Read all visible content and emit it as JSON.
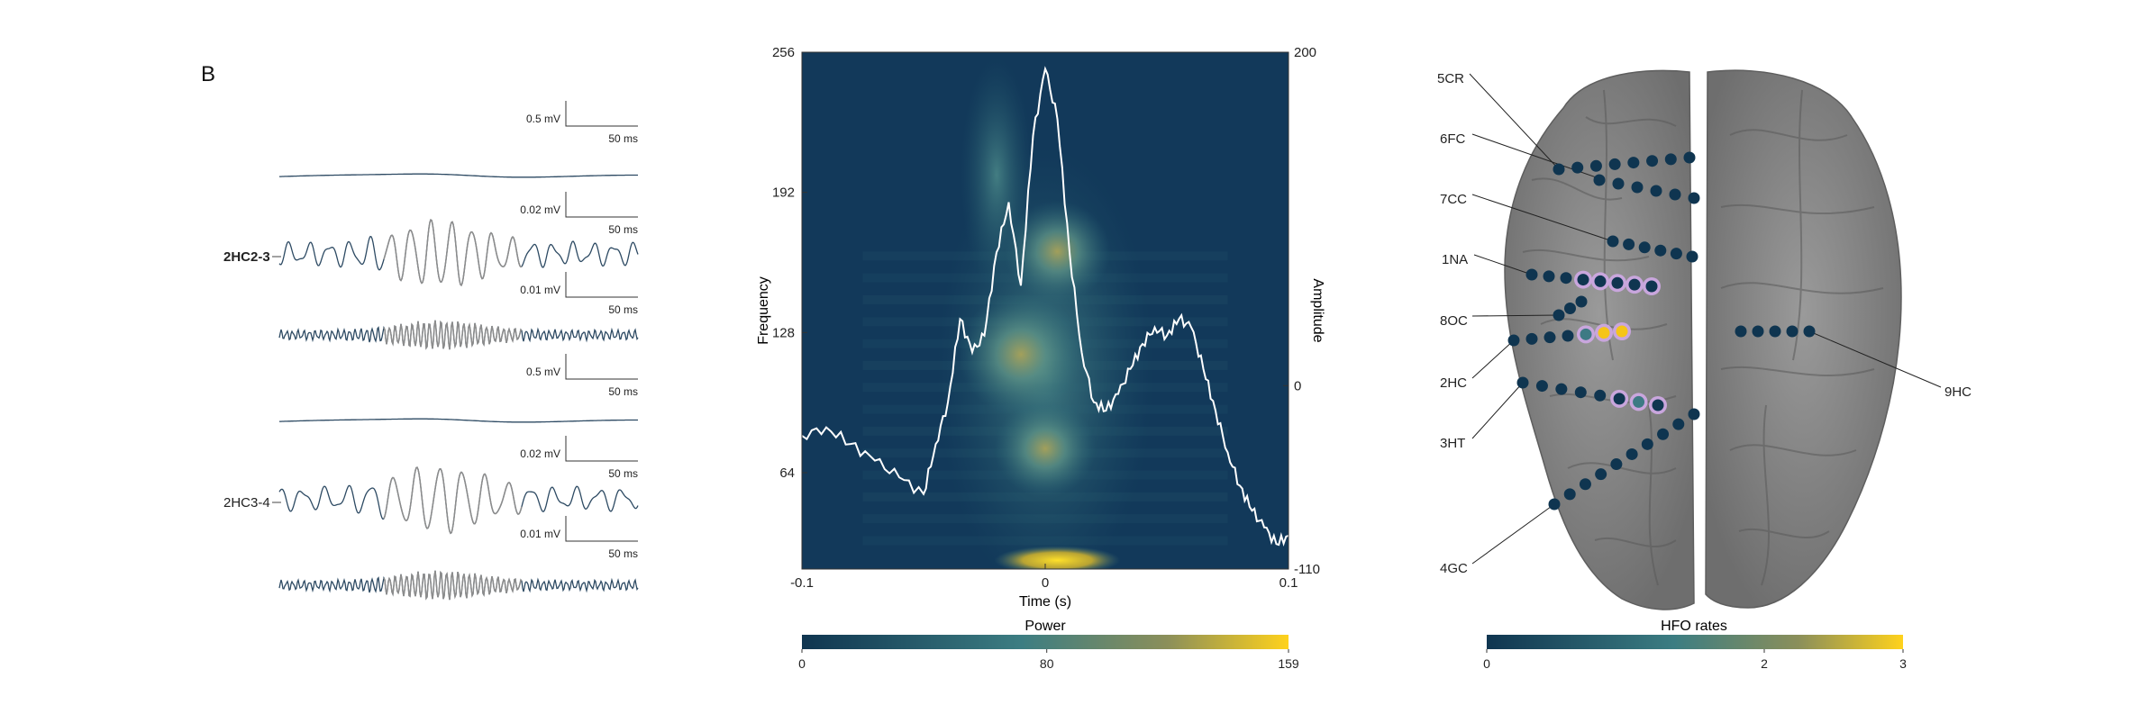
{
  "panel_label": "B",
  "traces": {
    "channels": [
      {
        "label": "2HC2-3",
        "bold": true
      },
      {
        "label": "2HC3-4",
        "bold": false
      }
    ],
    "scalebars": [
      {
        "amplitude": "0.5 mV",
        "time": "50 ms"
      },
      {
        "amplitude": "0.02 mV",
        "time": "50 ms"
      },
      {
        "amplitude": "0.01 mV",
        "time": "50 ms"
      },
      {
        "amplitude": "0.5 mV",
        "time": "50 ms"
      },
      {
        "amplitude": "0.02 mV",
        "time": "50 ms"
      },
      {
        "amplitude": "0.01 mV",
        "time": "50 ms"
      }
    ],
    "colors": {
      "trace": "#2d4a63",
      "highlight": "#8c8c8c"
    }
  },
  "chart_data": {
    "type": "heatmap",
    "xlabel": "Time (s)",
    "ylabel": "Frequency",
    "y2label": "Amplitude",
    "xlim": [
      -0.1,
      0.1
    ],
    "ylim": [
      20,
      256
    ],
    "y2lim": [
      -110,
      200
    ],
    "xticks": [
      "-0.1",
      "0",
      "0.1"
    ],
    "yticks": [
      "64",
      "128",
      "192",
      "256"
    ],
    "y2ticks": [
      "-110",
      "0",
      "200"
    ],
    "colorbar": {
      "label": "Power",
      "min": 0,
      "mid": 80,
      "max": 159,
      "ticks": [
        "0",
        "80",
        "159"
      ]
    },
    "hotspots": [
      {
        "t": -0.01,
        "f": 118,
        "power": 95
      },
      {
        "t": 0.005,
        "f": 165,
        "power": 55
      },
      {
        "t": 0.0,
        "f": 75,
        "power": 45
      },
      {
        "t": 0.005,
        "f": 24,
        "power": 159
      }
    ],
    "amplitude_trace": {
      "t": [
        -0.1,
        -0.09,
        -0.08,
        -0.07,
        -0.06,
        -0.05,
        -0.045,
        -0.04,
        -0.035,
        -0.03,
        -0.025,
        -0.02,
        -0.015,
        -0.01,
        -0.005,
        0.0,
        0.005,
        0.01,
        0.015,
        0.02,
        0.025,
        0.03,
        0.035,
        0.04,
        0.045,
        0.05,
        0.055,
        0.06,
        0.065,
        0.07,
        0.075,
        0.08,
        0.085,
        0.09,
        0.095,
        0.1
      ],
      "a": [
        -30,
        -25,
        -35,
        -45,
        -55,
        -65,
        -35,
        -10,
        40,
        20,
        30,
        80,
        110,
        60,
        150,
        190,
        160,
        80,
        20,
        -10,
        -15,
        -5,
        10,
        25,
        35,
        30,
        40,
        35,
        10,
        -15,
        -40,
        -60,
        -75,
        -85,
        -95,
        -90
      ]
    }
  },
  "brain": {
    "electrode_labels": [
      "5CR",
      "6FC",
      "7CC",
      "1NA",
      "8OC",
      "2HC",
      "3HT",
      "4GC",
      "9HC"
    ],
    "colorbar": {
      "label": "HFO rates",
      "min": 0,
      "mid": 2,
      "max": 3,
      "ticks": [
        "0",
        "2",
        "3"
      ]
    },
    "colors": {
      "brain": "#8d8d8d",
      "contact_low": "#0f3550",
      "ring": "#c9a6dd",
      "hot": "#f5c518"
    }
  }
}
